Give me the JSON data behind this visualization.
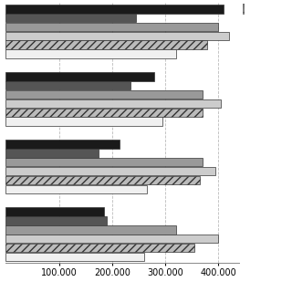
{
  "groups": [
    {
      "bars": [
        410000,
        245000,
        400000,
        420000,
        380000,
        320000
      ]
    },
    {
      "bars": [
        280000,
        235000,
        370000,
        405000,
        370000,
        295000
      ]
    },
    {
      "bars": [
        215000,
        175000,
        370000,
        395000,
        365000,
        265000
      ]
    },
    {
      "bars": [
        185000,
        190000,
        320000,
        400000,
        355000,
        260000
      ]
    }
  ],
  "bar_styles": [
    {
      "color": "#1a1a1a",
      "hatch": null
    },
    {
      "color": "#555555",
      "hatch": null
    },
    {
      "color": "#999999",
      "hatch": null
    },
    {
      "color": "#cccccc",
      "hatch": null
    },
    {
      "color": "#bbbbbb",
      "hatch": "////"
    },
    {
      "color": "#f0f0f0",
      "hatch": null
    }
  ],
  "xlim": [
    0,
    440000
  ],
  "xticks": [
    100000,
    200000,
    300000,
    400000
  ],
  "xticklabels": [
    "100.000",
    "200.000",
    "300.000",
    "400.000"
  ],
  "background_color": "#ffffff",
  "grid_color": "#bbbbbb"
}
